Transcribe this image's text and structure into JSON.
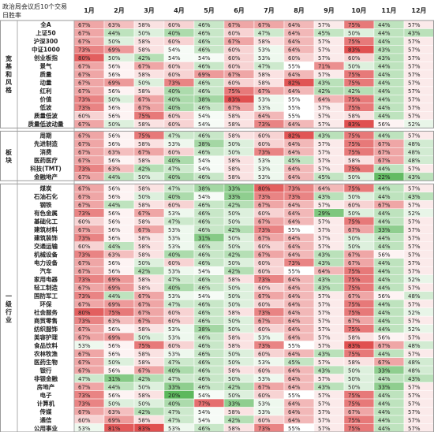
{
  "chart_data": {
    "type": "heatmap",
    "title": "政治局会议后10个交易日胜率",
    "months": [
      "1月",
      "2月",
      "3月",
      "4月",
      "5月",
      "6月",
      "7月",
      "8月",
      "9月",
      "10月",
      "11月",
      "12月"
    ],
    "groups": [
      {
        "name": "宽基和风格",
        "rows": [
          {
            "label": "全A",
            "values": [
              "67%",
              "63%",
              "58%",
              "60%",
              "46%",
              "67%",
              "67%",
              "64%",
              "57%",
              "75%",
              "44%",
              "57%"
            ]
          },
          {
            "label": "上证50",
            "values": [
              "67%",
              "44%",
              "50%",
              "40%",
              "46%",
              "60%",
              "47%",
              "64%",
              "45%",
              "50%",
              "44%",
              "43%"
            ]
          },
          {
            "label": "沪深300",
            "values": [
              "67%",
              "50%",
              "58%",
              "60%",
              "46%",
              "67%",
              "58%",
              "64%",
              "57%",
              "75%",
              "44%",
              "57%"
            ]
          },
          {
            "label": "中证1000",
            "values": [
              "73%",
              "69%",
              "58%",
              "54%",
              "46%",
              "60%",
              "53%",
              "64%",
              "57%",
              "83%",
              "43%",
              "57%"
            ]
          },
          {
            "label": "创业板指",
            "values": [
              "80%",
              "50%",
              "42%",
              "54%",
              "54%",
              "60%",
              "53%",
              "60%",
              "57%",
              "60%",
              "43%",
              "57%"
            ]
          },
          {
            "label": "景气",
            "values": [
              "67%",
              "56%",
              "67%",
              "60%",
              "46%",
              "60%",
              "47%",
              "55%",
              "71%",
              "50%",
              "44%",
              "57%"
            ]
          },
          {
            "label": "质量",
            "values": [
              "67%",
              "56%",
              "58%",
              "60%",
              "69%",
              "67%",
              "58%",
              "64%",
              "57%",
              "75%",
              "44%",
              "57%"
            ]
          },
          {
            "label": "动量",
            "values": [
              "67%",
              "69%",
              "50%",
              "73%",
              "46%",
              "60%",
              "58%",
              "82%",
              "43%",
              "75%",
              "44%",
              "57%"
            ]
          },
          {
            "label": "红利",
            "values": [
              "67%",
              "56%",
              "58%",
              "40%",
              "46%",
              "75%",
              "67%",
              "64%",
              "42%",
              "42%",
              "44%",
              "57%"
            ]
          },
          {
            "label": "价值",
            "values": [
              "73%",
              "50%",
              "67%",
              "40%",
              "38%",
              "83%",
              "53%",
              "55%",
              "64%",
              "75%",
              "44%",
              "57%"
            ]
          },
          {
            "label": "低波",
            "values": [
              "73%",
              "56%",
              "67%",
              "40%",
              "46%",
              "67%",
              "53%",
              "55%",
              "57%",
              "75%",
              "44%",
              "57%"
            ]
          },
          {
            "label": "质量低波",
            "values": [
              "60%",
              "56%",
              "75%",
              "60%",
              "54%",
              "58%",
              "64%",
              "55%",
              "57%",
              "58%",
              "44%",
              "57%"
            ]
          },
          {
            "label": "质量低波动量",
            "values": [
              "67%",
              "50%",
              "58%",
              "60%",
              "54%",
              "58%",
              "73%",
              "64%",
              "57%",
              "83%",
              "56%",
              "52%"
            ]
          }
        ]
      },
      {
        "name": "板块",
        "rows": [
          {
            "label": "周期",
            "values": [
              "67%",
              "56%",
              "75%",
              "47%",
              "46%",
              "58%",
              "60%",
              "82%",
              "43%",
              "75%",
              "44%",
              "57%"
            ]
          },
          {
            "label": "先进制造",
            "values": [
              "67%",
              "56%",
              "58%",
              "53%",
              "38%",
              "50%",
              "60%",
              "64%",
              "57%",
              "75%",
              "67%",
              "48%"
            ]
          },
          {
            "label": "消费",
            "values": [
              "67%",
              "63%",
              "67%",
              "60%",
              "46%",
              "50%",
              "73%",
              "64%",
              "57%",
              "75%",
              "67%",
              "48%"
            ]
          },
          {
            "label": "医药医疗",
            "values": [
              "67%",
              "56%",
              "58%",
              "40%",
              "54%",
              "58%",
              "53%",
              "45%",
              "57%",
              "58%",
              "67%",
              "48%"
            ]
          },
          {
            "label": "科技(TMT)",
            "values": [
              "73%",
              "63%",
              "42%",
              "47%",
              "54%",
              "58%",
              "53%",
              "64%",
              "57%",
              "75%",
              "44%",
              "57%"
            ]
          },
          {
            "label": "金融地产",
            "values": [
              "67%",
              "44%",
              "50%",
              "40%",
              "46%",
              "58%",
              "53%",
              "64%",
              "45%",
              "50%",
              "22%",
              "43%"
            ]
          }
        ]
      },
      {
        "name": "一级行业",
        "rows": [
          {
            "label": "煤炭",
            "values": [
              "67%",
              "56%",
              "58%",
              "47%",
              "38%",
              "33%",
              "80%",
              "73%",
              "64%",
              "75%",
              "44%",
              "57%"
            ]
          },
          {
            "label": "石油石化",
            "values": [
              "67%",
              "56%",
              "50%",
              "40%",
              "54%",
              "33%",
              "73%",
              "73%",
              "43%",
              "50%",
              "44%",
              "43%"
            ]
          },
          {
            "label": "钢铁",
            "values": [
              "67%",
              "44%",
              "58%",
              "60%",
              "46%",
              "42%",
              "67%",
              "64%",
              "57%",
              "60%",
              "67%",
              "57%"
            ]
          },
          {
            "label": "有色金属",
            "values": [
              "73%",
              "56%",
              "67%",
              "53%",
              "46%",
              "50%",
              "60%",
              "64%",
              "29%",
              "50%",
              "44%",
              "52%"
            ]
          },
          {
            "label": "基础化工",
            "values": [
              "60%",
              "56%",
              "58%",
              "47%",
              "46%",
              "50%",
              "67%",
              "64%",
              "57%",
              "75%",
              "44%",
              "57%"
            ]
          },
          {
            "label": "建筑材料",
            "values": [
              "67%",
              "56%",
              "67%",
              "53%",
              "46%",
              "42%",
              "73%",
              "55%",
              "57%",
              "67%",
              "33%",
              "57%"
            ]
          },
          {
            "label": "建筑装饰",
            "values": [
              "73%",
              "56%",
              "58%",
              "53%",
              "31%",
              "50%",
              "67%",
              "64%",
              "57%",
              "50%",
              "44%",
              "57%"
            ]
          },
          {
            "label": "交通运输",
            "values": [
              "60%",
              "44%",
              "58%",
              "53%",
              "46%",
              "50%",
              "60%",
              "64%",
              "57%",
              "50%",
              "44%",
              "57%"
            ]
          },
          {
            "label": "机械设备",
            "values": [
              "73%",
              "63%",
              "58%",
              "40%",
              "46%",
              "42%",
              "67%",
              "64%",
              "43%",
              "67%",
              "56%",
              "57%"
            ]
          },
          {
            "label": "电力设备",
            "values": [
              "67%",
              "56%",
              "50%",
              "60%",
              "46%",
              "50%",
              "60%",
              "73%",
              "43%",
              "67%",
              "44%",
              "57%"
            ]
          },
          {
            "label": "汽车",
            "values": [
              "67%",
              "56%",
              "42%",
              "53%",
              "54%",
              "42%",
              "60%",
              "55%",
              "64%",
              "75%",
              "44%",
              "57%"
            ]
          },
          {
            "label": "家用电器",
            "values": [
              "73%",
              "69%",
              "58%",
              "47%",
              "46%",
              "58%",
              "73%",
              "64%",
              "43%",
              "75%",
              "44%",
              "52%"
            ]
          },
          {
            "label": "轻工制造",
            "values": [
              "67%",
              "69%",
              "58%",
              "40%",
              "46%",
              "50%",
              "60%",
              "64%",
              "43%",
              "75%",
              "44%",
              "57%"
            ]
          },
          {
            "label": "国防军工",
            "values": [
              "73%",
              "44%",
              "67%",
              "53%",
              "54%",
              "50%",
              "67%",
              "64%",
              "57%",
              "67%",
              "56%",
              "48%"
            ]
          },
          {
            "label": "环保",
            "values": [
              "67%",
              "69%",
              "67%",
              "47%",
              "46%",
              "50%",
              "60%",
              "64%",
              "57%",
              "75%",
              "44%",
              "57%"
            ]
          },
          {
            "label": "社会服务",
            "values": [
              "80%",
              "75%",
              "67%",
              "60%",
              "46%",
              "58%",
              "73%",
              "64%",
              "57%",
              "75%",
              "44%",
              "52%"
            ]
          },
          {
            "label": "商贸零售",
            "values": [
              "73%",
              "63%",
              "67%",
              "60%",
              "46%",
              "50%",
              "67%",
              "64%",
              "57%",
              "67%",
              "44%",
              "57%"
            ]
          },
          {
            "label": "纺织服饰",
            "values": [
              "67%",
              "56%",
              "58%",
              "53%",
              "38%",
              "50%",
              "60%",
              "64%",
              "57%",
              "75%",
              "44%",
              "52%"
            ]
          },
          {
            "label": "美容护理",
            "values": [
              "67%",
              "69%",
              "50%",
              "53%",
              "46%",
              "58%",
              "53%",
              "64%",
              "57%",
              "58%",
              "56%",
              "57%"
            ]
          },
          {
            "label": "食品饮料",
            "values": [
              "53%",
              "56%",
              "75%",
              "60%",
              "46%",
              "58%",
              "73%",
              "55%",
              "57%",
              "83%",
              "67%",
              "48%"
            ]
          },
          {
            "label": "农林牧渔",
            "values": [
              "67%",
              "56%",
              "58%",
              "53%",
              "46%",
              "50%",
              "60%",
              "64%",
              "43%",
              "75%",
              "44%",
              "57%"
            ]
          },
          {
            "label": "医药生物",
            "values": [
              "67%",
              "50%",
              "58%",
              "47%",
              "46%",
              "50%",
              "53%",
              "45%",
              "57%",
              "58%",
              "67%",
              "48%"
            ]
          },
          {
            "label": "银行",
            "values": [
              "67%",
              "56%",
              "67%",
              "40%",
              "46%",
              "58%",
              "60%",
              "64%",
              "43%",
              "50%",
              "33%",
              "48%"
            ]
          },
          {
            "label": "非银金融",
            "values": [
              "47%",
              "31%",
              "42%",
              "47%",
              "46%",
              "50%",
              "53%",
              "64%",
              "57%",
              "50%",
              "44%",
              "43%"
            ]
          },
          {
            "label": "房地产",
            "values": [
              "67%",
              "44%",
              "50%",
              "33%",
              "46%",
              "42%",
              "67%",
              "64%",
              "43%",
              "50%",
              "33%",
              "57%"
            ]
          },
          {
            "label": "电子",
            "values": [
              "73%",
              "56%",
              "58%",
              "20%",
              "54%",
              "50%",
              "60%",
              "55%",
              "57%",
              "75%",
              "44%",
              "57%"
            ]
          },
          {
            "label": "计算机",
            "values": [
              "73%",
              "50%",
              "50%",
              "40%",
              "77%",
              "33%",
              "53%",
              "64%",
              "57%",
              "75%",
              "44%",
              "57%"
            ]
          },
          {
            "label": "传媒",
            "values": [
              "67%",
              "63%",
              "42%",
              "47%",
              "54%",
              "58%",
              "53%",
              "64%",
              "57%",
              "67%",
              "44%",
              "57%"
            ]
          },
          {
            "label": "通信",
            "values": [
              "60%",
              "69%",
              "58%",
              "47%",
              "54%",
              "42%",
              "60%",
              "64%",
              "57%",
              "75%",
              "44%",
              "57%"
            ]
          },
          {
            "label": "公用事业",
            "values": [
              "53%",
              "81%",
              "83%",
              "53%",
              "46%",
              "58%",
              "73%",
              "55%",
              "57%",
              "75%",
              "44%",
              "57%"
            ]
          }
        ]
      }
    ],
    "colors": {
      "low": "#5cb85c",
      "mid": "#ffffff",
      "high": "#e05050",
      "border": "#9a9a9a",
      "text": "#222222"
    },
    "scale": {
      "min": 20,
      "mid": 55,
      "max": 83
    }
  }
}
